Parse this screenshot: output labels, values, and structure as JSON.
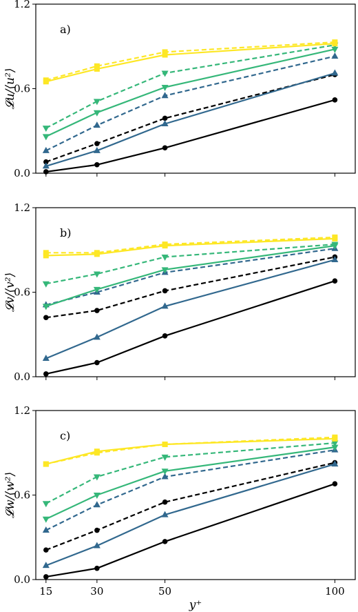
{
  "chart_data": [
    {
      "type": "line",
      "panel_label": "a)",
      "ylabel": "𝓛u/⟨u²⟩",
      "xlabel": "",
      "x": [
        15,
        30,
        50,
        100
      ],
      "xlim": [
        12,
        106
      ],
      "ylim": [
        0,
        1.2
      ],
      "yticks": [
        "0.0",
        "0.6",
        "1.2"
      ],
      "xticks": [],
      "series": [
        {
          "color": "#000000",
          "dash": false,
          "marker": "circle",
          "values": [
            0.01,
            0.06,
            0.18,
            0.52
          ]
        },
        {
          "color": "#000000",
          "dash": true,
          "marker": "circle",
          "values": [
            0.08,
            0.21,
            0.39,
            0.7
          ]
        },
        {
          "color": "#31688e",
          "dash": false,
          "marker": "triangle-up",
          "values": [
            0.05,
            0.16,
            0.35,
            0.71
          ]
        },
        {
          "color": "#31688e",
          "dash": true,
          "marker": "triangle-up",
          "values": [
            0.16,
            0.34,
            0.55,
            0.83
          ]
        },
        {
          "color": "#35b779",
          "dash": false,
          "marker": "triangle-down",
          "values": [
            0.26,
            0.43,
            0.61,
            0.88
          ]
        },
        {
          "color": "#35b779",
          "dash": true,
          "marker": "triangle-down",
          "values": [
            0.32,
            0.51,
            0.71,
            0.91
          ]
        },
        {
          "color": "#fde725",
          "dash": false,
          "marker": "square",
          "values": [
            0.65,
            0.74,
            0.84,
            0.92
          ]
        },
        {
          "color": "#fde725",
          "dash": true,
          "marker": "square",
          "values": [
            0.66,
            0.76,
            0.86,
            0.93
          ]
        }
      ]
    },
    {
      "type": "line",
      "panel_label": "b)",
      "ylabel": "𝓛v/⟨v²⟩",
      "xlabel": "",
      "x": [
        15,
        30,
        50,
        100
      ],
      "xlim": [
        12,
        106
      ],
      "ylim": [
        0,
        1.2
      ],
      "yticks": [
        "0.0",
        "0.6",
        "1.2"
      ],
      "xticks": [],
      "series": [
        {
          "color": "#000000",
          "dash": false,
          "marker": "circle",
          "values": [
            0.02,
            0.1,
            0.29,
            0.68
          ]
        },
        {
          "color": "#000000",
          "dash": true,
          "marker": "circle",
          "values": [
            0.42,
            0.47,
            0.61,
            0.85
          ]
        },
        {
          "color": "#31688e",
          "dash": false,
          "marker": "triangle-up",
          "values": [
            0.13,
            0.28,
            0.5,
            0.83
          ]
        },
        {
          "color": "#31688e",
          "dash": true,
          "marker": "triangle-up",
          "values": [
            0.51,
            0.6,
            0.74,
            0.91
          ]
        },
        {
          "color": "#35b779",
          "dash": false,
          "marker": "triangle-down",
          "values": [
            0.5,
            0.62,
            0.76,
            0.93
          ]
        },
        {
          "color": "#35b779",
          "dash": true,
          "marker": "triangle-down",
          "values": [
            0.66,
            0.73,
            0.85,
            0.94
          ]
        },
        {
          "color": "#fde725",
          "dash": false,
          "marker": "square",
          "values": [
            0.86,
            0.87,
            0.93,
            0.98
          ]
        },
        {
          "color": "#fde725",
          "dash": true,
          "marker": "square",
          "values": [
            0.88,
            0.88,
            0.94,
            0.99
          ]
        }
      ]
    },
    {
      "type": "line",
      "panel_label": "c)",
      "ylabel": "𝓛w/⟨w²⟩",
      "xlabel": "y⁺",
      "x": [
        15,
        30,
        50,
        100
      ],
      "xlim": [
        12,
        106
      ],
      "ylim": [
        0,
        1.2
      ],
      "yticks": [
        "0.0",
        "0.6",
        "1.2"
      ],
      "xticks": [
        "15",
        "30",
        "50",
        "100"
      ],
      "series": [
        {
          "color": "#000000",
          "dash": false,
          "marker": "circle",
          "values": [
            0.02,
            0.08,
            0.27,
            0.68
          ]
        },
        {
          "color": "#000000",
          "dash": true,
          "marker": "circle",
          "values": [
            0.21,
            0.35,
            0.55,
            0.83
          ]
        },
        {
          "color": "#31688e",
          "dash": false,
          "marker": "triangle-up",
          "values": [
            0.1,
            0.24,
            0.46,
            0.82
          ]
        },
        {
          "color": "#31688e",
          "dash": true,
          "marker": "triangle-up",
          "values": [
            0.35,
            0.53,
            0.73,
            0.92
          ]
        },
        {
          "color": "#35b779",
          "dash": false,
          "marker": "triangle-down",
          "values": [
            0.43,
            0.6,
            0.77,
            0.94
          ]
        },
        {
          "color": "#35b779",
          "dash": true,
          "marker": "triangle-down",
          "values": [
            0.54,
            0.73,
            0.87,
            0.97
          ]
        },
        {
          "color": "#fde725",
          "dash": false,
          "marker": "square",
          "values": [
            0.82,
            0.91,
            0.96,
            1.0
          ]
        },
        {
          "color": "#fde725",
          "dash": true,
          "marker": "square",
          "values": [
            0.82,
            0.9,
            0.96,
            1.01
          ]
        }
      ]
    }
  ]
}
